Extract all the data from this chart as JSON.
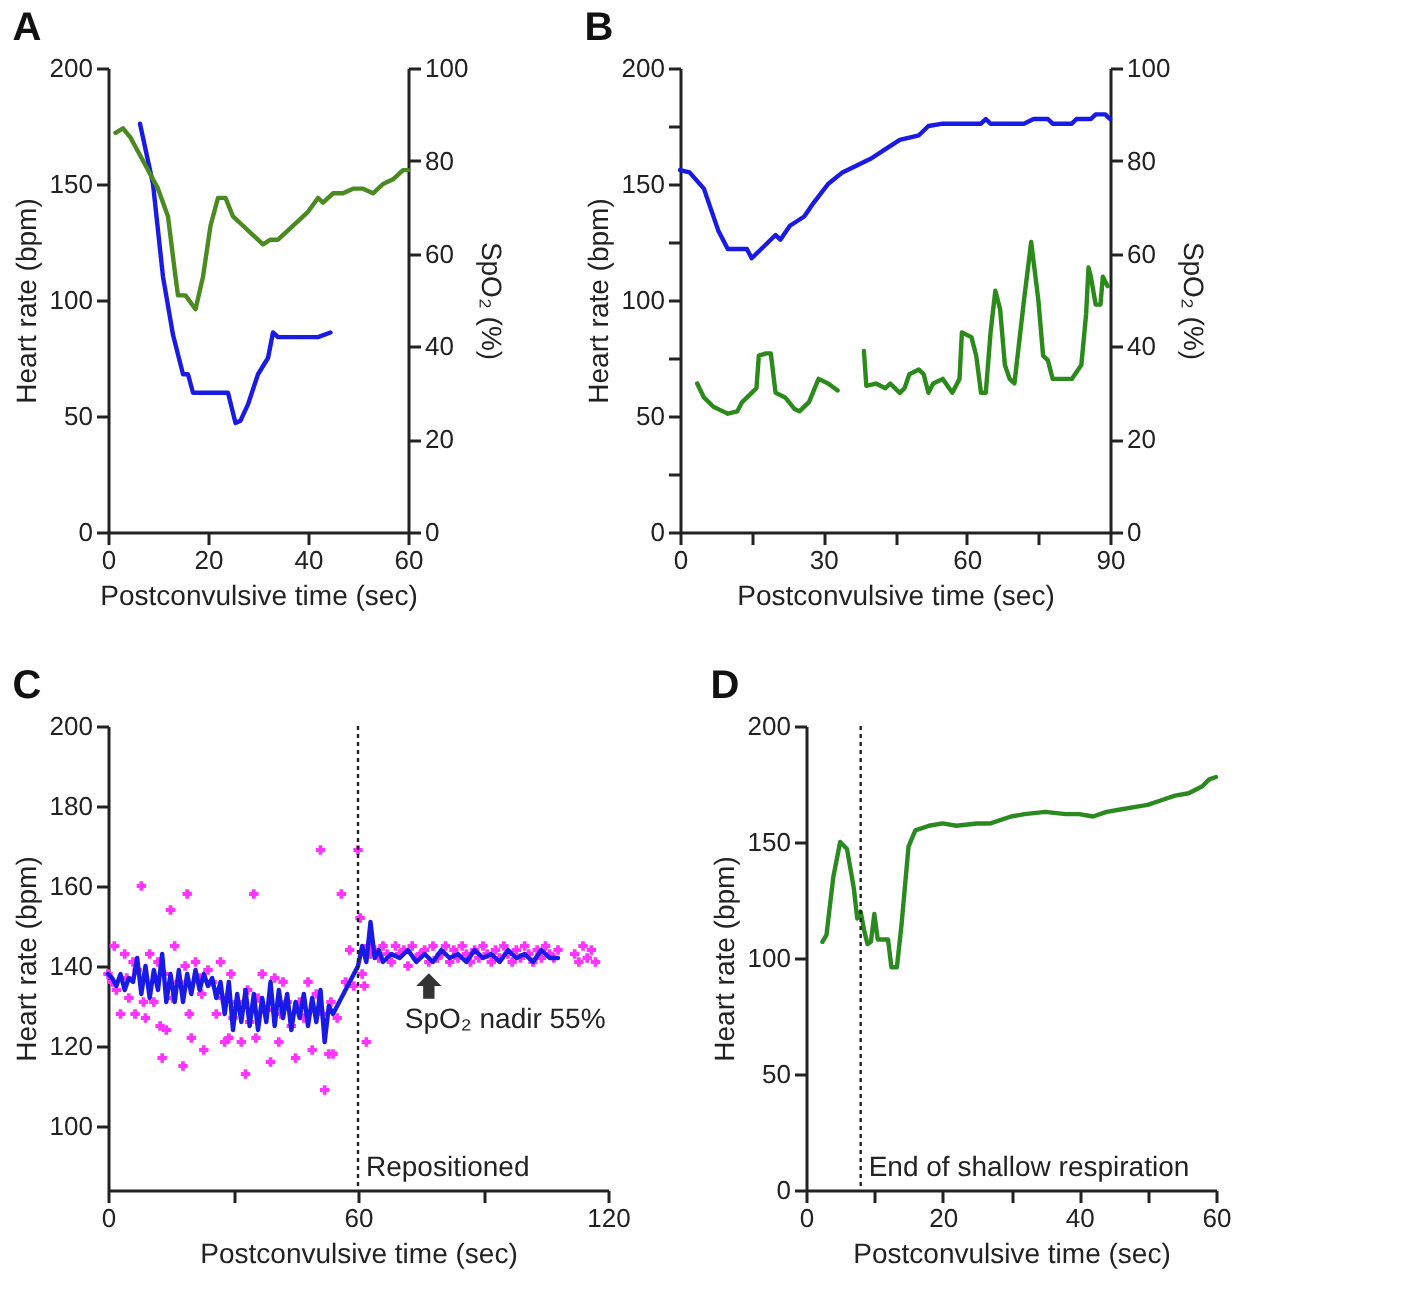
{
  "chart_data": [
    {
      "type": "line",
      "title": "A",
      "xlabel": "Postconvulsive time (sec)",
      "ylabel": "Heart rate (bpm)",
      "y2label": "SpO₂ (%)",
      "xlim": [
        0,
        60
      ],
      "xticks": [
        0,
        20,
        40,
        60
      ],
      "ylim": [
        0,
        200
      ],
      "yticks": [
        0,
        50,
        100,
        150,
        200
      ],
      "y2lim": [
        0,
        100
      ],
      "y2ticks": [
        0,
        20,
        40,
        60,
        80,
        100
      ],
      "series": [
        {
          "color": "#1a1ae6",
          "x": [
            6.4,
            9,
            11,
            13,
            15,
            16,
            17,
            24,
            25.5,
            26.5,
            28,
            30,
            32,
            33,
            34,
            42,
            44.5
          ],
          "values": [
            176,
            150,
            110,
            85,
            68,
            68,
            60,
            60,
            47,
            48,
            55,
            68,
            75,
            86,
            84,
            84,
            86
          ]
        },
        {
          "color": "#4a8a1f",
          "axis": "y2",
          "x": [
            1.5,
            3,
            4.5,
            6,
            8,
            10,
            12,
            13.5,
            14,
            15.5,
            17.5,
            19,
            20.5,
            22,
            23.5,
            25,
            27,
            29,
            31,
            32.5,
            34,
            36,
            38,
            40,
            42,
            43,
            45,
            47,
            49,
            51,
            53,
            55,
            57,
            59,
            60
          ],
          "values": [
            86,
            87,
            85,
            82,
            78,
            74,
            68,
            55,
            51,
            51,
            48,
            55,
            66,
            72,
            72,
            68,
            66,
            64,
            62,
            63,
            63,
            65,
            67,
            69,
            72,
            71,
            73,
            73,
            74,
            74,
            73,
            75,
            76,
            78,
            78
          ]
        }
      ]
    },
    {
      "type": "line",
      "title": "B",
      "xlabel": "Postconvulsive time (sec)",
      "ylabel": "Heart rate (bpm)",
      "y2label": "SpO₂ (%)",
      "xlim": [
        0,
        90
      ],
      "xticks": [
        0,
        {
          "value": 15,
          "label": null
        },
        30,
        {
          "value": 45,
          "label": null
        },
        60,
        {
          "value": 75,
          "label": null
        },
        90
      ],
      "ylim": [
        0,
        200
      ],
      "yticks": [
        0,
        {
          "value": 25,
          "label": null
        },
        50,
        {
          "value": 75,
          "label": null
        },
        100,
        {
          "value": 125,
          "label": null
        },
        150,
        {
          "value": 175,
          "label": null
        },
        200
      ],
      "y2lim": [
        0,
        100
      ],
      "y2ticks": [
        0,
        20,
        40,
        60,
        80,
        100
      ],
      "series": [
        {
          "color": "#1a1ae6",
          "x": [
            0,
            2,
            5,
            8,
            10,
            14,
            15,
            17,
            20,
            21,
            23,
            26,
            28,
            31,
            34,
            37,
            40,
            43,
            46,
            50,
            52,
            55,
            63,
            64,
            65,
            72,
            74,
            77,
            78,
            82,
            83,
            86,
            87,
            89,
            90
          ],
          "values": [
            156,
            155,
            148,
            130,
            122,
            122,
            118,
            122,
            128,
            126,
            132,
            136,
            142,
            150,
            155,
            158,
            161,
            165,
            169,
            171,
            175,
            176,
            176,
            178,
            176,
            176,
            178,
            178,
            176,
            176,
            178,
            178,
            180,
            180,
            178
          ]
        },
        {
          "color": "#2a8a1a",
          "axis": "y2",
          "x": [
            3.6,
            5,
            7,
            9,
            10,
            12,
            13,
            15,
            16,
            16.5,
            18,
            19,
            20,
            22,
            24,
            25,
            27,
            29,
            31,
            33,
            35,
            38.5,
            39,
            41,
            43,
            44,
            46,
            47,
            48,
            50,
            51,
            52,
            53,
            55,
            57,
            58.5,
            59,
            61,
            62,
            63,
            64,
            65,
            66,
            67,
            68,
            69,
            70,
            72,
            73.5,
            75,
            76,
            77,
            78,
            82,
            84,
            85,
            85.5,
            86,
            87,
            88,
            88.5,
            89.5
          ],
          "values": [
            32,
            29,
            27,
            26,
            25.5,
            26,
            28,
            30,
            31,
            38,
            38.5,
            38.5,
            30,
            29,
            26.5,
            26,
            28,
            33,
            32,
            30.5,
            null,
            39,
            31.5,
            32,
            31,
            32,
            30,
            31,
            34,
            35,
            34,
            30,
            32,
            33,
            30,
            33,
            43,
            42,
            38,
            30,
            30,
            43,
            52,
            48,
            36,
            33,
            32,
            50,
            62.5,
            50,
            38,
            37,
            33,
            33,
            36,
            47,
            57,
            55,
            49,
            49,
            55,
            53
          ]
        }
      ]
    },
    {
      "type": "line",
      "title": "C",
      "xlabel": "Postconvulsive time (sec)",
      "ylabel": "Heart rate (bpm)",
      "xlim": [
        0,
        120
      ],
      "xticks": [
        0,
        {
          "value": 30,
          "label": null
        },
        60,
        {
          "value": 90,
          "label": null
        },
        120
      ],
      "ylim": [
        84,
        200
      ],
      "yticks": [
        100,
        120,
        140,
        160,
        180,
        200
      ],
      "ref_lines": [
        {
          "axis": "x",
          "value": 60,
          "label": "Repositioned",
          "line_style": "dotted"
        }
      ],
      "annotations": [
        {
          "text": "SpO₂ nadir 55%",
          "x": 77,
          "y": 141
        }
      ],
      "series": [
        {
          "type": "scatter",
          "marker": "cross",
          "color": "#ff33ff",
          "x": [
            0,
            1,
            1.5,
            2,
            3,
            4,
            4.5,
            5,
            6,
            6.5,
            7,
            8,
            8.5,
            9,
            10,
            10.5,
            11,
            12,
            12.5,
            13,
            13.5,
            14,
            15,
            15.5,
            16,
            17,
            18,
            18.5,
            19,
            19.5,
            20,
            21,
            22,
            22.5,
            23,
            24,
            25,
            26,
            27,
            27.5,
            28,
            29,
            29.5,
            30,
            31,
            32,
            33,
            33.5,
            34,
            35,
            35.5,
            36,
            37,
            38,
            39,
            40,
            41,
            41.5,
            42,
            43,
            44,
            45,
            46,
            47,
            48,
            49,
            50,
            51,
            51.5,
            52,
            53,
            53.5,
            54,
            55,
            56,
            57,
            58,
            59,
            60,
            60.5,
            61,
            61.5,
            62,
            62.5,
            63,
            64,
            65,
            66,
            67,
            68,
            69,
            70,
            71,
            72,
            73,
            74,
            75,
            76,
            77,
            78,
            79,
            80,
            81,
            82,
            83,
            84,
            85,
            86,
            87,
            88,
            89,
            90,
            91,
            92,
            93,
            94,
            95,
            96,
            97,
            98,
            99,
            100,
            101,
            102,
            103,
            104,
            105,
            106,
            107,
            108,
            112,
            113,
            114,
            115,
            116,
            117
          ],
          "values": [
            138,
            136,
            145,
            134,
            128,
            143,
            137,
            132,
            141,
            128,
            139,
            160,
            131,
            127,
            143,
            null,
            131,
            141,
            125,
            117,
            138,
            124,
            154,
            132,
            145,
            136,
            115,
            140,
            158,
            128,
            122,
            141,
            137,
            133,
            119,
            139,
            136,
            128,
            141,
            132,
            121,
            122,
            138,
            127,
            131,
            121,
            113,
            134,
            126,
            158,
            122,
            132,
            138,
            129,
            116,
            137,
            121,
            128,
            136,
            131,
            125,
            117,
            131,
            127,
            136,
            119,
            133,
            169,
            128,
            109,
            118,
            131,
            118,
            127,
            158,
            136,
            144,
            135,
            169,
            152,
            138,
            135,
            121,
            145,
            143,
            144,
            142,
            145,
            143,
            141,
            145,
            143,
            144,
            140,
            145,
            142,
            143,
            144,
            141,
            145,
            142,
            143,
            145,
            141,
            144,
            142,
            145,
            143,
            141,
            144,
            142,
            145,
            143,
            141,
            144,
            142,
            145,
            143,
            141,
            144,
            142,
            145,
            143,
            141,
            144,
            142,
            145,
            143,
            142,
            144,
            143,
            141,
            145,
            142,
            144,
            141
          ]
        },
        {
          "color": "#1a1ae6",
          "x": [
            0,
            1,
            2,
            3,
            4,
            5,
            6,
            7,
            8,
            9,
            10,
            11,
            12,
            13,
            14,
            15,
            16,
            17,
            18,
            19,
            20,
            21,
            22,
            23,
            24,
            25,
            26,
            27,
            28,
            29,
            30,
            31,
            32,
            33,
            34,
            35,
            36,
            37,
            38,
            39,
            40,
            41,
            42,
            43,
            44,
            45,
            46,
            47,
            48,
            49,
            50,
            51,
            52,
            53,
            54,
            55,
            60,
            61,
            62,
            63,
            64,
            65,
            66,
            68,
            70,
            72,
            74,
            76,
            78,
            80,
            82,
            84,
            86,
            88,
            90,
            92,
            94,
            96,
            98,
            100,
            102,
            104,
            106,
            108
          ],
          "values": [
            138,
            137,
            135,
            138,
            134,
            137,
            136,
            142,
            133,
            140,
            132,
            139,
            134,
            143,
            131,
            138,
            131,
            139,
            131,
            138,
            133,
            139,
            134,
            138,
            135,
            137,
            132,
            136,
            128,
            136,
            124,
            133,
            126,
            134,
            125,
            133,
            124,
            132,
            126,
            136,
            125,
            134,
            127,
            133,
            124,
            131,
            127,
            133,
            125,
            132,
            126,
            134,
            121,
            130,
            128,
            130,
            140,
            145,
            141,
            151,
            142,
            144,
            141,
            143,
            142,
            144,
            141,
            143,
            141,
            144,
            142,
            143,
            141,
            144,
            142,
            143,
            141,
            144,
            142,
            143,
            141,
            144,
            142,
            142
          ]
        }
      ]
    },
    {
      "type": "line",
      "title": "D",
      "xlabel": "Postconvulsive time (sec)",
      "ylabel": "Heart rate (bpm)",
      "xlim": [
        0,
        60
      ],
      "xticks": [
        0,
        {
          "value": 10,
          "label": null
        },
        20,
        {
          "value": 30,
          "label": null
        },
        40,
        {
          "value": 50,
          "label": null
        },
        60
      ],
      "ylim": [
        0,
        200
      ],
      "yticks": [
        0,
        50,
        100,
        150,
        200
      ],
      "ref_lines": [
        {
          "axis": "x",
          "value": 8,
          "label": "End of shallow respiration",
          "line_style": "dotted"
        }
      ],
      "series": [
        {
          "color": "#2a8a20",
          "x": [
            2.4,
            3,
            4,
            5,
            6,
            7,
            7.5,
            8,
            8.5,
            9,
            9.5,
            10,
            10.5,
            12,
            12.5,
            13.3,
            14,
            15,
            16,
            18,
            20,
            22,
            25,
            27,
            30,
            32,
            35,
            38,
            40,
            42,
            44,
            46,
            48,
            50,
            52,
            54,
            56,
            58,
            59,
            60
          ],
          "values": [
            107,
            110,
            135,
            150,
            147,
            130,
            117,
            120,
            112,
            106,
            107,
            119,
            108,
            108,
            96,
            96,
            115,
            148,
            155,
            157,
            158,
            157,
            158,
            158,
            161,
            162,
            163,
            162,
            162,
            161,
            163,
            164,
            165,
            166,
            168,
            170,
            171,
            174,
            177,
            178
          ]
        }
      ]
    }
  ]
}
